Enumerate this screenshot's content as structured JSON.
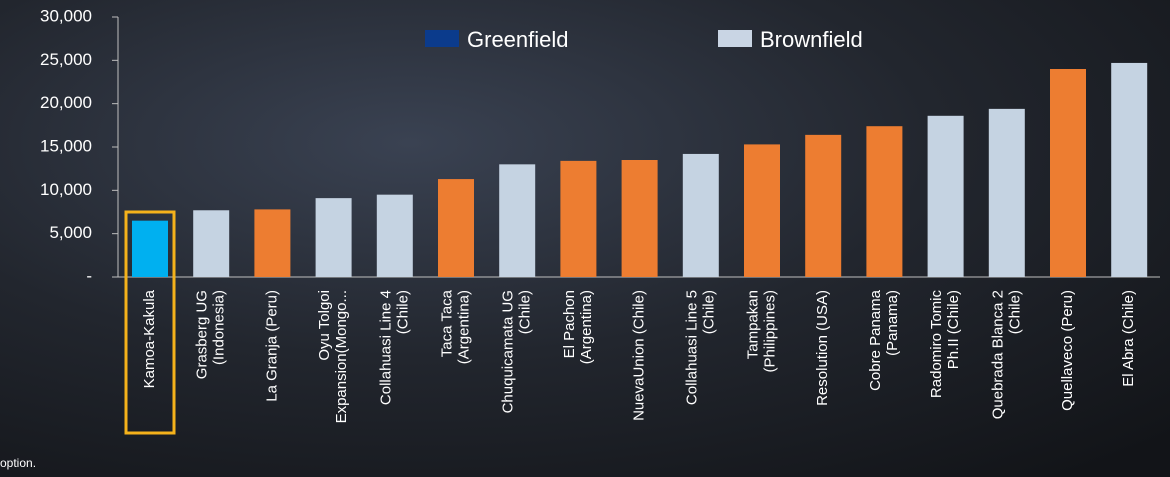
{
  "chart_data": {
    "type": "bar",
    "categories": [
      [
        "Kamoa-Kakula"
      ],
      [
        "Grasberg UG",
        "(Indonesia)"
      ],
      [
        "La Granja (Peru)"
      ],
      [
        "Oyu Tolgoi",
        "Expansion(Mongo..."
      ],
      [
        "Collahuasi Line 4",
        "(Chile)"
      ],
      [
        "Taca Taca",
        "(Argentina)"
      ],
      [
        "Chuquicamata UG",
        "(Chile)"
      ],
      [
        "El Pachon",
        "(Argentina)"
      ],
      [
        "NuevaUnion (Chile)"
      ],
      [
        "Collahuasi Line 5",
        "(Chile)"
      ],
      [
        "Tampakan",
        "(Philippines)"
      ],
      [
        "Resolution (USA)"
      ],
      [
        "Cobre Panama",
        "(Panama)"
      ],
      [
        "Radomiro Tomic",
        "Ph.II (Chile)"
      ],
      [
        "Quebrada Blanca 2",
        "(Chile)"
      ],
      [
        "Quellaveco (Peru)"
      ],
      [
        "El Abra (Chile)"
      ]
    ],
    "values": [
      6500,
      7700,
      7800,
      9100,
      9500,
      11300,
      13000,
      13400,
      13500,
      14200,
      15300,
      16400,
      17400,
      18600,
      19400,
      24000,
      24700
    ],
    "colors": [
      "#00b0f0",
      "#c5d3e2",
      "#ed7d31",
      "#c5d3e2",
      "#c5d3e2",
      "#ed7d31",
      "#c5d3e2",
      "#ed7d31",
      "#ed7d31",
      "#c5d3e2",
      "#ed7d31",
      "#ed7d31",
      "#ed7d31",
      "#c5d3e2",
      "#c5d3e2",
      "#ed7d31",
      "#c5d3e2"
    ],
    "highlight": 0,
    "highlight_color": "#f5b21b",
    "legend": [
      {
        "name": "Greenfield",
        "color": "#0b3b8c"
      },
      {
        "name": "Brownfield",
        "color": "#c9d5e4"
      }
    ],
    "ylim": [
      0,
      30000
    ],
    "yticks": [
      {
        "value": 0,
        "label": "-"
      },
      {
        "value": 5000,
        "label": "5,000"
      },
      {
        "value": 10000,
        "label": "10,000"
      },
      {
        "value": 15000,
        "label": "15,000"
      },
      {
        "value": 20000,
        "label": "20,000"
      },
      {
        "value": 25000,
        "label": "25,000"
      },
      {
        "value": 30000,
        "label": "30,000"
      }
    ],
    "footnote": "option."
  }
}
